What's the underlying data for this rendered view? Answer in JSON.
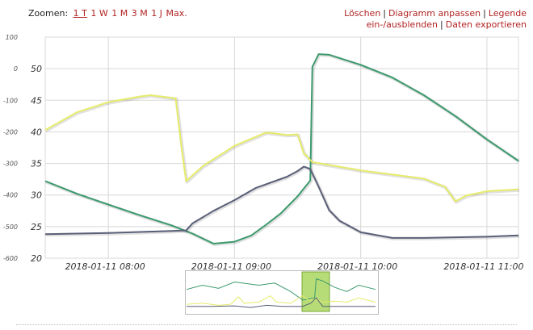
{
  "toolbar": {
    "zoom_label": "Zoomen:",
    "zoom_options": [
      "1 T",
      "1 W",
      "1 M",
      "3 M",
      "1 J",
      "Max."
    ],
    "active_zoom": "1 T",
    "actions": [
      "Löschen",
      "Diagramm anpassen",
      "Legende ein-/ausblenden",
      "Daten exportieren"
    ]
  },
  "colors": {
    "series_green": "#3c9a6e",
    "series_yellow": "#e6ec6a",
    "series_slate": "#5a5f78",
    "grid": "#d8d8d8",
    "link": "#b22222",
    "navigator_highlight": "#9ed04a"
  },
  "chart_data": {
    "type": "line",
    "left_axis": {
      "ticks": [
        "100",
        "0",
        "-100",
        "-200",
        "-300",
        "-400",
        "-500",
        "-600"
      ],
      "range": [
        -600,
        100
      ]
    },
    "right_axis": {
      "ticks": [
        "50",
        "45",
        "40",
        "35",
        "30",
        "25",
        "20"
      ],
      "range": [
        20,
        55
      ]
    },
    "x_axis": {
      "range": [
        "2018-01-11 07:30",
        "2018-01-11 11:15"
      ],
      "ticks": [
        "2018-01-11 08:00",
        "2018-01-11 09:00",
        "2018-01-11 10:00",
        "2018-01-11 11:00"
      ]
    },
    "grid": true,
    "series": [
      {
        "axis": "right",
        "color": "#3c9a6e",
        "points": [
          [
            "2018-01-11 07:30",
            32.2
          ],
          [
            "2018-01-11 07:45",
            30.2
          ],
          [
            "2018-01-11 08:00",
            28.5
          ],
          [
            "2018-01-11 08:15",
            26.8
          ],
          [
            "2018-01-11 08:30",
            25.2
          ],
          [
            "2018-01-11 08:40",
            23.9
          ],
          [
            "2018-01-11 08:50",
            22.3
          ],
          [
            "2018-01-11 09:00",
            22.6
          ],
          [
            "2018-01-11 09:08",
            23.6
          ],
          [
            "2018-01-11 09:15",
            25.3
          ],
          [
            "2018-01-11 09:22",
            27.1
          ],
          [
            "2018-01-11 09:30",
            29.8
          ],
          [
            "2018-01-11 09:36",
            32.3
          ],
          [
            "2018-01-11 09:37",
            50.3
          ],
          [
            "2018-01-11 09:40",
            52.3
          ],
          [
            "2018-01-11 09:45",
            52.2
          ],
          [
            "2018-01-11 10:00",
            50.6
          ],
          [
            "2018-01-11 10:15",
            48.6
          ],
          [
            "2018-01-11 10:30",
            45.8
          ],
          [
            "2018-01-11 10:45",
            42.5
          ],
          [
            "2018-01-11 11:00",
            38.8
          ],
          [
            "2018-01-11 11:15",
            35.4
          ]
        ]
      },
      {
        "axis": "right",
        "color": "#e6ec6a",
        "points": [
          [
            "2018-01-11 07:30",
            40.3
          ],
          [
            "2018-01-11 07:45",
            43.1
          ],
          [
            "2018-01-11 08:00",
            44.7
          ],
          [
            "2018-01-11 08:15",
            45.6
          ],
          [
            "2018-01-11 08:20",
            45.8
          ],
          [
            "2018-01-11 08:32",
            45.3
          ],
          [
            "2018-01-11 08:35",
            37.0
          ],
          [
            "2018-01-11 08:37",
            32.2
          ],
          [
            "2018-01-11 08:40",
            33.1
          ],
          [
            "2018-01-11 08:45",
            34.6
          ],
          [
            "2018-01-11 09:00",
            37.8
          ],
          [
            "2018-01-11 09:10",
            39.2
          ],
          [
            "2018-01-11 09:15",
            39.9
          ],
          [
            "2018-01-11 09:25",
            39.5
          ],
          [
            "2018-01-11 09:30",
            39.6
          ],
          [
            "2018-01-11 09:33",
            36.6
          ],
          [
            "2018-01-11 09:37",
            35.2
          ],
          [
            "2018-01-11 10:00",
            33.9
          ],
          [
            "2018-01-11 10:30",
            32.6
          ],
          [
            "2018-01-11 10:40",
            31.3
          ],
          [
            "2018-01-11 10:45",
            29.0
          ],
          [
            "2018-01-11 10:50",
            29.9
          ],
          [
            "2018-01-11 11:00",
            30.6
          ],
          [
            "2018-01-11 11:15",
            30.9
          ]
        ]
      },
      {
        "axis": "right",
        "color": "#5a5f78",
        "points": [
          [
            "2018-01-11 07:30",
            23.8
          ],
          [
            "2018-01-11 08:00",
            24.0
          ],
          [
            "2018-01-11 08:30",
            24.3
          ],
          [
            "2018-01-11 08:37",
            24.4
          ],
          [
            "2018-01-11 08:40",
            25.5
          ],
          [
            "2018-01-11 08:50",
            27.5
          ],
          [
            "2018-01-11 09:00",
            29.2
          ],
          [
            "2018-01-11 09:10",
            31.1
          ],
          [
            "2018-01-11 09:25",
            32.9
          ],
          [
            "2018-01-11 09:30",
            33.8
          ],
          [
            "2018-01-11 09:33",
            34.5
          ],
          [
            "2018-01-11 09:36",
            34.1
          ],
          [
            "2018-01-11 09:40",
            31.3
          ],
          [
            "2018-01-11 09:45",
            27.6
          ],
          [
            "2018-01-11 09:50",
            25.9
          ],
          [
            "2018-01-11 10:00",
            24.1
          ],
          [
            "2018-01-11 10:15",
            23.2
          ],
          [
            "2018-01-11 10:30",
            23.2
          ],
          [
            "2018-01-11 11:00",
            23.4
          ],
          [
            "2018-01-11 11:15",
            23.6
          ]
        ]
      }
    ]
  },
  "navigator": {
    "highlight_range": [
      "2018-01-11 07:30",
      "2018-01-11 11:15"
    ]
  }
}
